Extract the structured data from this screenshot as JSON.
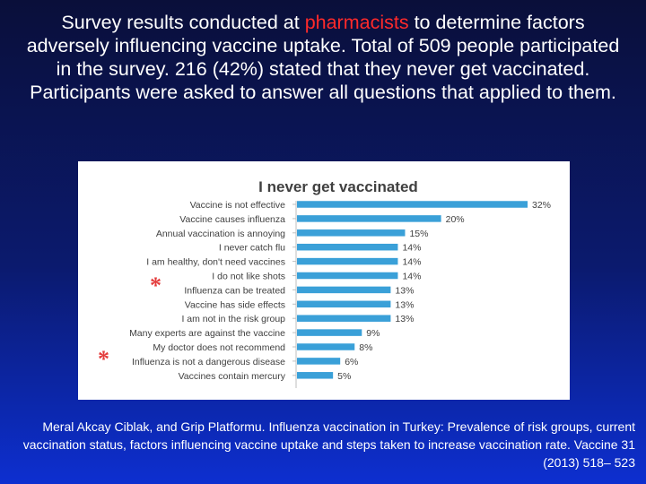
{
  "slide": {
    "title_before": "Survey results conducted at ",
    "title_accent": "pharmacists",
    "title_after": " to determine factors adversely influencing vaccine uptake. Total of 509 people participated in the survey. 216 (42%) stated that they never get vaccinated. Participants were asked to answer all questions that applied to them.",
    "accent_color": "#ff2a2a",
    "asterisk_symbol": "*",
    "asterisk_color": "#e43c3c",
    "citation": "Meral Akcay Ciblak, and Grip Platformu. Influenza vaccination in Turkey: Prevalence of risk groups, current vaccination status, factors influencing vaccine uptake and steps taken to increase vaccination rate. Vaccine 31 (2013) 518– 523"
  },
  "chart_data": {
    "type": "bar",
    "orientation": "horizontal",
    "title": "I never get vaccinated",
    "bar_color": "#3aa0d8",
    "categories": [
      "Vaccine is not effective",
      "Vaccine causes influenza",
      "Annual vaccination is annoying",
      "I never catch flu",
      "I am healthy, don't need vaccines",
      "I do not like shots",
      "Influenza can be treated",
      "Vaccine has side effects",
      "I am not in the risk group",
      "Many experts are against the vaccine",
      "My doctor does not recommend",
      "Influenza is not a dangerous disease",
      "Vaccines contain mercury"
    ],
    "values": [
      32,
      20,
      15,
      14,
      14,
      14,
      13,
      13,
      13,
      9,
      8,
      6,
      5
    ],
    "value_labels": [
      "32%",
      "20%",
      "15%",
      "14%",
      "14%",
      "14%",
      "13%",
      "13%",
      "13%",
      "9%",
      "8%",
      "6%",
      "5%"
    ],
    "xlim": [
      0,
      32
    ],
    "grid": false,
    "legend": "none"
  }
}
